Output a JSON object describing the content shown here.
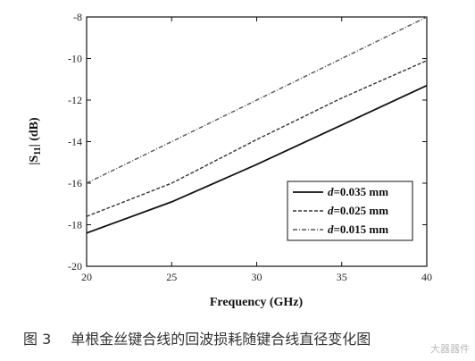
{
  "chart_data": {
    "type": "line",
    "xlabel": "Frequency (GHz)",
    "ylabel": "|S11| (dB)",
    "ylabel_main": "|S",
    "ylabel_sub": "11",
    "ylabel_rest": "| (dB)",
    "xlim": [
      20,
      40
    ],
    "ylim": [
      -20,
      -8
    ],
    "xticks": [
      20,
      25,
      30,
      35,
      40
    ],
    "yticks": [
      -20,
      -18,
      -16,
      -14,
      -12,
      -10,
      -8
    ],
    "grid": false,
    "legend_position": "bottom-right",
    "series": [
      {
        "name": "d=0.035 mm",
        "var": "d",
        "rest": "=0.035 mm",
        "style": "solid",
        "color": "#111111",
        "x": [
          20,
          25,
          30,
          35,
          40
        ],
        "y": [
          -18.4,
          -16.9,
          -15.1,
          -13.2,
          -11.3
        ]
      },
      {
        "name": "d=0.025 mm",
        "var": "d",
        "rest": "=0.025 mm",
        "style": "dash",
        "color": "#333333",
        "x": [
          20,
          25,
          30,
          35,
          40
        ],
        "y": [
          -17.6,
          -16.0,
          -13.9,
          -11.9,
          -10.1
        ]
      },
      {
        "name": "d=0.015 mm",
        "var": "d",
        "rest": "=0.015 mm",
        "style": "dashdot",
        "color": "#555555",
        "x": [
          20,
          25,
          30,
          35,
          40
        ],
        "y": [
          -16.0,
          -14.0,
          -12.0,
          -10.0,
          -8.0
        ]
      }
    ]
  },
  "caption": {
    "figure_number": "图 3",
    "text": "单根金丝键合线的回波损耗随键合线直径变化图"
  },
  "watermark": "大器器件"
}
